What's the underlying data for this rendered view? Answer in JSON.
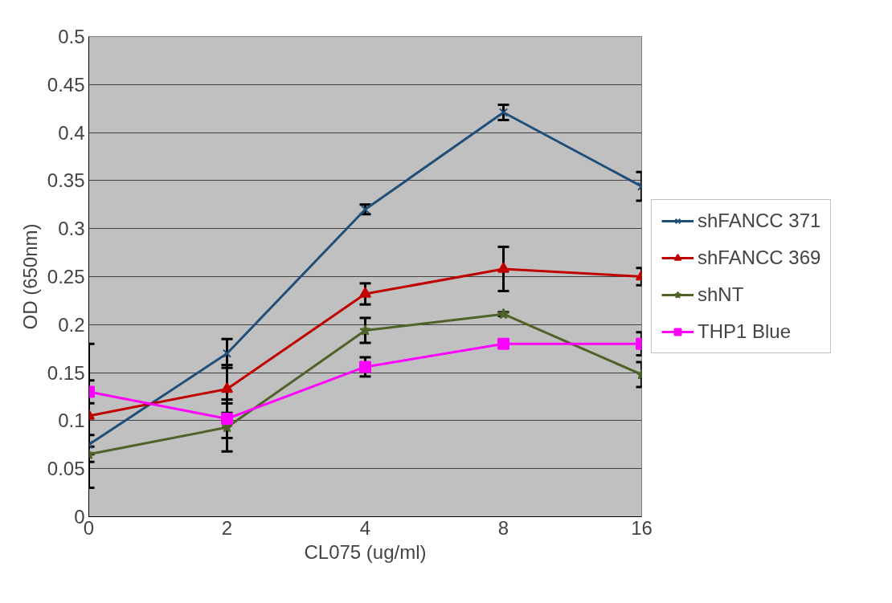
{
  "chart_data": {
    "type": "line",
    "xlabel": "CL075 (ug/ml)",
    "ylabel": "OD (650nm)",
    "categories": [
      "0",
      "2",
      "4",
      "8",
      "16"
    ],
    "ylim": [
      0,
      0.5
    ],
    "yticks": [
      0,
      0.05,
      0.1,
      0.15,
      0.2,
      0.25,
      0.3,
      0.35,
      0.4,
      0.45,
      0.5
    ],
    "grid": "y",
    "legend": "right",
    "series": [
      {
        "name": "shFANCC 371",
        "color": "#1f4e79",
        "marker": "cross",
        "values": [
          0.075,
          0.17,
          0.32,
          0.421,
          0.344
        ],
        "errors": [
          0.01,
          0.015,
          0.005,
          0.008,
          0.015
        ]
      },
      {
        "name": "shFANCC 369",
        "color": "#c00000",
        "marker": "triangle",
        "values": [
          0.105,
          0.133,
          0.232,
          0.258,
          0.25
        ],
        "errors": [
          0.075,
          0.025,
          0.011,
          0.023,
          0.009
        ]
      },
      {
        "name": "shNT",
        "color": "#4f6228",
        "marker": "star",
        "values": [
          0.065,
          0.093,
          0.194,
          0.211,
          0.148
        ],
        "errors": [
          0.008,
          0.025,
          0.013,
          0.002,
          0.013
        ]
      },
      {
        "name": "THP1 Blue",
        "color": "#ff00ff",
        "marker": "square",
        "values": [
          0.13,
          0.102,
          0.156,
          0.18,
          0.18
        ],
        "errors": [
          0.012,
          0.02,
          0.01,
          null,
          0.012
        ]
      }
    ]
  }
}
